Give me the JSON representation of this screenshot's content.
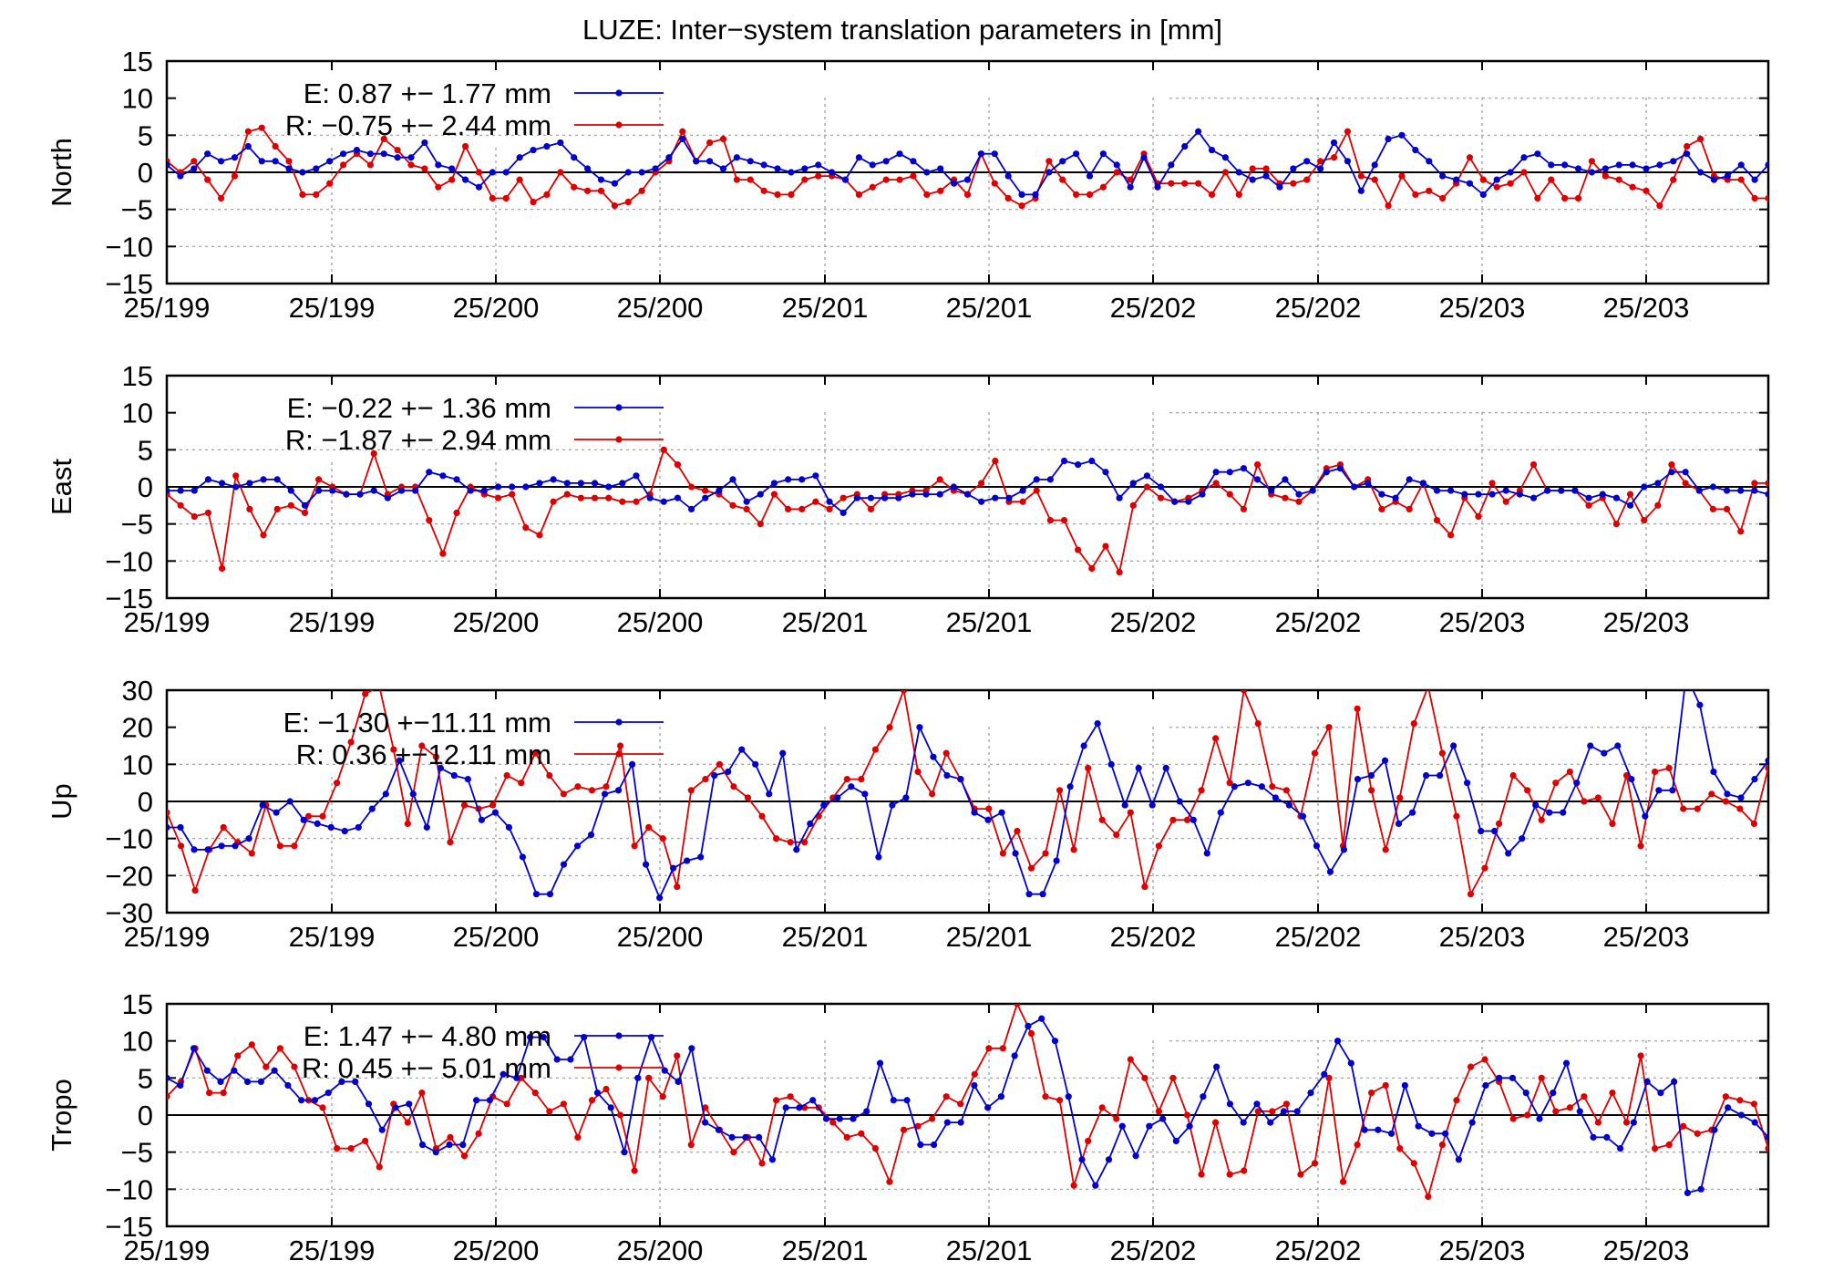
{
  "title": "LUZE: Inter−system translation parameters in [mm]",
  "colors": {
    "E": "#0000cc",
    "R": "#dd0000",
    "axis": "#000000",
    "grid": "#999999"
  },
  "x_tick_labels": [
    "25/199",
    "25/199",
    "25/200",
    "25/200",
    "25/201",
    "25/201",
    "25/202",
    "25/202",
    "25/203",
    "25/203"
  ],
  "chart_data": [
    {
      "type": "line",
      "ylabel": "North",
      "ylim": [
        -15,
        15
      ],
      "yticks": [
        15,
        10,
        5,
        0,
        -5,
        -10,
        -15
      ],
      "grid": true,
      "legend_position": "top-left",
      "series": [
        {
          "name": "E",
          "label": "E:   0.87 +− 1.77 mm",
          "values": [
            1,
            -0.5,
            0.5,
            2.5,
            1.5,
            2,
            3.5,
            1.5,
            1.5,
            0.5,
            0,
            0.5,
            1.5,
            2.5,
            3,
            2.5,
            2.5,
            2,
            2,
            4,
            1,
            0.5,
            -1,
            -2,
            0,
            0,
            2,
            3,
            3.5,
            4,
            2,
            0.5,
            -1,
            -1.5,
            0,
            0,
            0.5,
            2,
            4.5,
            1.5,
            1.5,
            0.5,
            2,
            1.5,
            1,
            0.5,
            0,
            0.5,
            1,
            0,
            -1,
            2,
            1,
            1.5,
            2.5,
            1.5,
            0,
            0.5,
            -1.5,
            -1,
            2.5,
            2.5,
            -0.5,
            -3,
            -3,
            0,
            1.5,
            2.5,
            -0.5,
            2.5,
            1,
            -2,
            2,
            -2,
            1,
            3.5,
            5.5,
            3,
            2,
            0,
            -1,
            -0.5,
            -2,
            0.5,
            1.5,
            0.5,
            4,
            1.5,
            -2.5,
            1,
            4.5,
            5,
            3,
            1.5,
            -0.5,
            -1,
            -1.5,
            -3,
            -1,
            0,
            2,
            2.5,
            1,
            1,
            0.5,
            0,
            0.5,
            1,
            1,
            0.5,
            1,
            1.5,
            2.5,
            0,
            -1,
            -0.5,
            1,
            -1,
            1
          ]
        },
        {
          "name": "R",
          "label": "R:  −0.75 +− 2.44 mm",
          "values": [
            1.5,
            0,
            1.5,
            -1,
            -3.5,
            -0.5,
            5.5,
            6,
            3.5,
            1.5,
            -3,
            -3,
            -1.5,
            1,
            2.5,
            1,
            4.5,
            3,
            1,
            0.5,
            -2,
            -1,
            3.5,
            0,
            -3.5,
            -3.5,
            -1,
            -4,
            -3,
            0,
            -2,
            -2.5,
            -2.5,
            -4.5,
            -4,
            -2.5,
            0,
            1.5,
            5.5,
            1.5,
            4,
            4.5,
            -1,
            -1,
            -2.5,
            -3,
            -3,
            -1,
            -0.5,
            -0.5,
            -1,
            -3,
            -2,
            -1,
            -1,
            -0.5,
            -3,
            -2.5,
            -1,
            -3,
            2.5,
            -1.5,
            -3.5,
            -4.5,
            -3.5,
            1.5,
            -1,
            -3,
            -3,
            -2,
            0,
            -1,
            2.5,
            -1.5,
            -1.5,
            -1.5,
            -1.5,
            -3,
            0,
            -3,
            0.5,
            0.5,
            -1.5,
            -1.5,
            -1,
            1.5,
            2,
            5.5,
            -0.5,
            -1,
            -4.5,
            -0.5,
            -3,
            -2.5,
            -3.5,
            -1.5,
            2,
            -1,
            -2,
            -1.5,
            0,
            -3.5,
            -1,
            -3.5,
            -3.5,
            1.5,
            -0.5,
            -1,
            -2,
            -2.5,
            -4.5,
            -1,
            3.5,
            4.5,
            -0.5,
            -1,
            -1,
            -3.5,
            -3.5
          ]
        }
      ]
    },
    {
      "type": "line",
      "ylabel": "East",
      "ylim": [
        -15,
        15
      ],
      "yticks": [
        15,
        10,
        5,
        0,
        -5,
        -10,
        -15
      ],
      "grid": true,
      "legend_position": "top-left",
      "series": [
        {
          "name": "E",
          "label": "E:  −0.22 +− 1.36 mm",
          "values": [
            -0.5,
            -0.5,
            -0.5,
            1,
            0.5,
            0,
            0.5,
            1,
            1,
            -0.5,
            -2.5,
            -0.5,
            -0.5,
            -1,
            -1,
            -0.5,
            -1.5,
            -0.5,
            -0.5,
            2,
            1.5,
            1,
            -0.5,
            -0.5,
            0,
            0,
            0,
            0.5,
            1,
            0.5,
            0.5,
            0.5,
            0,
            0.5,
            1.5,
            -1.5,
            -2,
            -1.5,
            -3,
            -1.5,
            -0.5,
            1,
            -2,
            -1,
            0.5,
            1,
            1,
            1.5,
            -2,
            -3.5,
            -1.5,
            -1.5,
            -1.5,
            -1.5,
            -1,
            -1,
            -1,
            0,
            -1,
            -2,
            -1.5,
            -1.5,
            -0.5,
            1,
            1,
            3.5,
            3,
            3.5,
            2,
            -1.5,
            0.5,
            1.5,
            0,
            -2,
            -2,
            -1,
            2,
            2,
            2.5,
            1,
            -0.5,
            1,
            -1,
            -0.5,
            2,
            2.5,
            0,
            0.5,
            -1,
            -1.5,
            1,
            0.5,
            -0.5,
            -0.5,
            -1,
            -1,
            -1,
            -0.5,
            -1,
            -1.5,
            -0.5,
            -0.5,
            -0.5,
            -1.5,
            -1,
            -1.5,
            -2.5,
            0,
            0.5,
            2,
            2,
            -0.5,
            0,
            -0.5,
            -0.5,
            -0.5,
            -1
          ]
        },
        {
          "name": "R",
          "label": "R:  −1.87 +− 2.94 mm",
          "values": [
            -1,
            -2.5,
            -4,
            -3.5,
            -11,
            1.5,
            -3,
            -6.5,
            -3,
            -2.5,
            -3.5,
            1,
            0,
            -1,
            -1,
            4.5,
            -1,
            0,
            0,
            -4.5,
            -9,
            -3.5,
            0,
            -1,
            -1.5,
            -1,
            -5.5,
            -6.5,
            -2,
            -1,
            -1.5,
            -1.5,
            -1.5,
            -2,
            -2,
            -1,
            5,
            3,
            0,
            -0.5,
            -1,
            -2.5,
            -3,
            -5,
            -1,
            -3,
            -3,
            -2,
            -3,
            -1.5,
            -1,
            -3,
            -1,
            -1,
            -0.5,
            -0.5,
            1,
            -0.5,
            -1,
            0.5,
            3.5,
            -2,
            -2,
            -0.5,
            -4.5,
            -4.5,
            -8.5,
            -11,
            -8,
            -11.5,
            -2.5,
            0,
            -1.5,
            -2,
            -1.5,
            -0.5,
            0.5,
            -1,
            -3,
            3,
            -1,
            -1.5,
            -2,
            -0.5,
            2.5,
            3,
            0,
            1,
            -3,
            -2,
            -3,
            0.5,
            -4.5,
            -6.5,
            -1.5,
            -4,
            0.5,
            -2,
            -0.5,
            3,
            -0.5,
            -0.5,
            -0.5,
            -2.5,
            -1.5,
            -5,
            -1,
            -4.5,
            -2.5,
            3,
            0.5,
            -0.5,
            -3,
            -3,
            -6,
            0.5,
            0.5
          ]
        }
      ]
    },
    {
      "type": "line",
      "ylabel": "Up",
      "ylim": [
        -30,
        30
      ],
      "yticks": [
        30,
        20,
        10,
        0,
        -10,
        -20,
        -30
      ],
      "grid": true,
      "legend_position": "top-left",
      "series": [
        {
          "name": "E",
          "label": "E:  −1.30 +−11.11 mm",
          "values": [
            -7,
            -7,
            -13,
            -13,
            -12,
            -12,
            -10,
            -1,
            -3,
            0,
            -5,
            -6,
            -7,
            -8,
            -7,
            -2,
            2,
            11,
            2,
            -7,
            9,
            7,
            6,
            -5,
            -3,
            -7,
            -15,
            -25,
            -25,
            -17,
            -12,
            -9,
            2,
            3,
            10,
            -17,
            -26,
            -18,
            -16,
            -15,
            7,
            8,
            14,
            10,
            2,
            13,
            -13,
            -6,
            -1,
            1,
            4,
            2,
            -15,
            -1,
            1,
            20,
            12,
            7,
            6,
            -3,
            -5,
            -3,
            -14,
            -25,
            -25,
            -16,
            4,
            15,
            21,
            10,
            -1,
            9,
            -1,
            9,
            0,
            -5,
            -14,
            -3,
            4,
            5,
            4,
            1,
            -1,
            -4,
            -12,
            -19,
            -13,
            6,
            7,
            11,
            -6,
            -3,
            7,
            7,
            15,
            5,
            -8,
            -8,
            -14,
            -10,
            -1,
            -3,
            -3,
            5,
            15,
            13,
            15,
            6,
            -4,
            3,
            3,
            34,
            26,
            8,
            2,
            1,
            6,
            11
          ]
        },
        {
          "name": "R",
          "label": "R:   0.36 +−12.11 mm",
          "values": [
            -3,
            -12,
            -24,
            -13,
            -7,
            -11,
            -14,
            -1,
            -12,
            -12,
            -4,
            -4,
            5,
            16,
            29,
            31,
            14,
            -6,
            15,
            12,
            -11,
            -1,
            -2,
            -1,
            7,
            5,
            13,
            7,
            2,
            4,
            3,
            4,
            15,
            -12,
            -7,
            -10,
            -23,
            3,
            6,
            10,
            4,
            1,
            -4,
            -10,
            -11,
            -11,
            -4,
            1,
            6,
            6,
            14,
            20,
            30,
            8,
            2,
            13,
            6,
            -2,
            -2,
            -14,
            -8,
            -18,
            -14,
            3,
            -13,
            9,
            -5,
            -9,
            -3,
            -23,
            -12,
            -5,
            -5,
            3,
            17,
            5,
            30,
            21,
            4,
            3,
            -4,
            13,
            20,
            -12,
            25,
            3,
            -13,
            1,
            21,
            31,
            13,
            -4,
            -25,
            -18,
            -6,
            7,
            3,
            -5,
            5,
            8,
            0,
            1,
            -6,
            7,
            -12,
            8,
            9,
            -2,
            -2,
            2,
            0,
            -2,
            -6,
            9
          ]
        }
      ]
    },
    {
      "type": "line",
      "ylabel": "Tropo",
      "ylim": [
        -15,
        15
      ],
      "yticks": [
        15,
        10,
        5,
        0,
        -5,
        -10,
        -15
      ],
      "grid": true,
      "legend_position": "top-left",
      "series": [
        {
          "name": "E",
          "label": "E:   1.47 +− 4.80 mm",
          "values": [
            5,
            4,
            9,
            6,
            4.5,
            6,
            4.5,
            4.5,
            6,
            4,
            2,
            2,
            3,
            4.5,
            4.5,
            1.5,
            -2,
            1,
            1.5,
            -4,
            -5,
            -4,
            -4,
            2,
            2,
            5.5,
            5,
            10.5,
            10.5,
            7.5,
            7.5,
            10.5,
            3,
            1,
            -5,
            5,
            10.5,
            6,
            4.5,
            9,
            -1,
            -2,
            -3,
            -3,
            -3,
            -6,
            1,
            1,
            2,
            -0.5,
            -0.5,
            -0.5,
            0.5,
            7,
            2,
            2,
            -4,
            -4,
            -1,
            -1,
            4,
            1,
            2.5,
            8,
            12,
            13,
            10,
            2.5,
            -6,
            -9.5,
            -6,
            -1.5,
            -5.5,
            -1.5,
            -0.5,
            -3.5,
            -1.5,
            2.5,
            6.5,
            1.5,
            -1,
            1.5,
            -1,
            0.5,
            0.5,
            3,
            5.5,
            10,
            7,
            -2,
            -2,
            -2.5,
            4,
            -1.5,
            -2.5,
            -2.5,
            -6,
            -1,
            4,
            5,
            5,
            3,
            -0.5,
            3,
            7,
            0.5,
            -3,
            -3,
            -4.5,
            -1,
            4.5,
            3,
            4.5,
            -10.5,
            -10,
            -2,
            1,
            0,
            -1,
            -3
          ]
        },
        {
          "name": "R",
          "label": "R:   0.45 +− 5.01 mm",
          "values": [
            2.5,
            4.5,
            9,
            3,
            3,
            8,
            9.5,
            6.5,
            9,
            6.5,
            2,
            1,
            -4.5,
            -4.5,
            -3.5,
            -7,
            1.5,
            -1,
            3,
            -4.5,
            -3,
            -5.5,
            -2.5,
            2.5,
            1.5,
            5,
            3,
            0.5,
            1.5,
            -3,
            2,
            3.5,
            0,
            -7.5,
            5,
            2.5,
            8,
            -4,
            1,
            -2,
            -5,
            -3,
            -6.5,
            2,
            2.5,
            1,
            1,
            -1,
            -3,
            -2.5,
            -4.5,
            -9,
            -2,
            -1.5,
            -0.5,
            2.5,
            1.5,
            5.5,
            9,
            9,
            15,
            11,
            2.5,
            2,
            -9.5,
            -3.5,
            1,
            -0.5,
            7.5,
            5,
            0.5,
            5,
            0,
            -8,
            -1,
            -8,
            -7.5,
            0.5,
            0.5,
            1.5,
            -8,
            -6.5,
            5,
            -9,
            -4,
            3,
            4,
            -4.5,
            -6.5,
            -11,
            -4,
            2,
            6.5,
            7.5,
            4.5,
            -0.5,
            0,
            5,
            0.5,
            1,
            2.5,
            -1,
            3,
            -1,
            8,
            -4.5,
            -4,
            -1.5,
            -2.5,
            -2,
            2.5,
            2,
            1.5,
            -4.5
          ]
        }
      ]
    }
  ]
}
